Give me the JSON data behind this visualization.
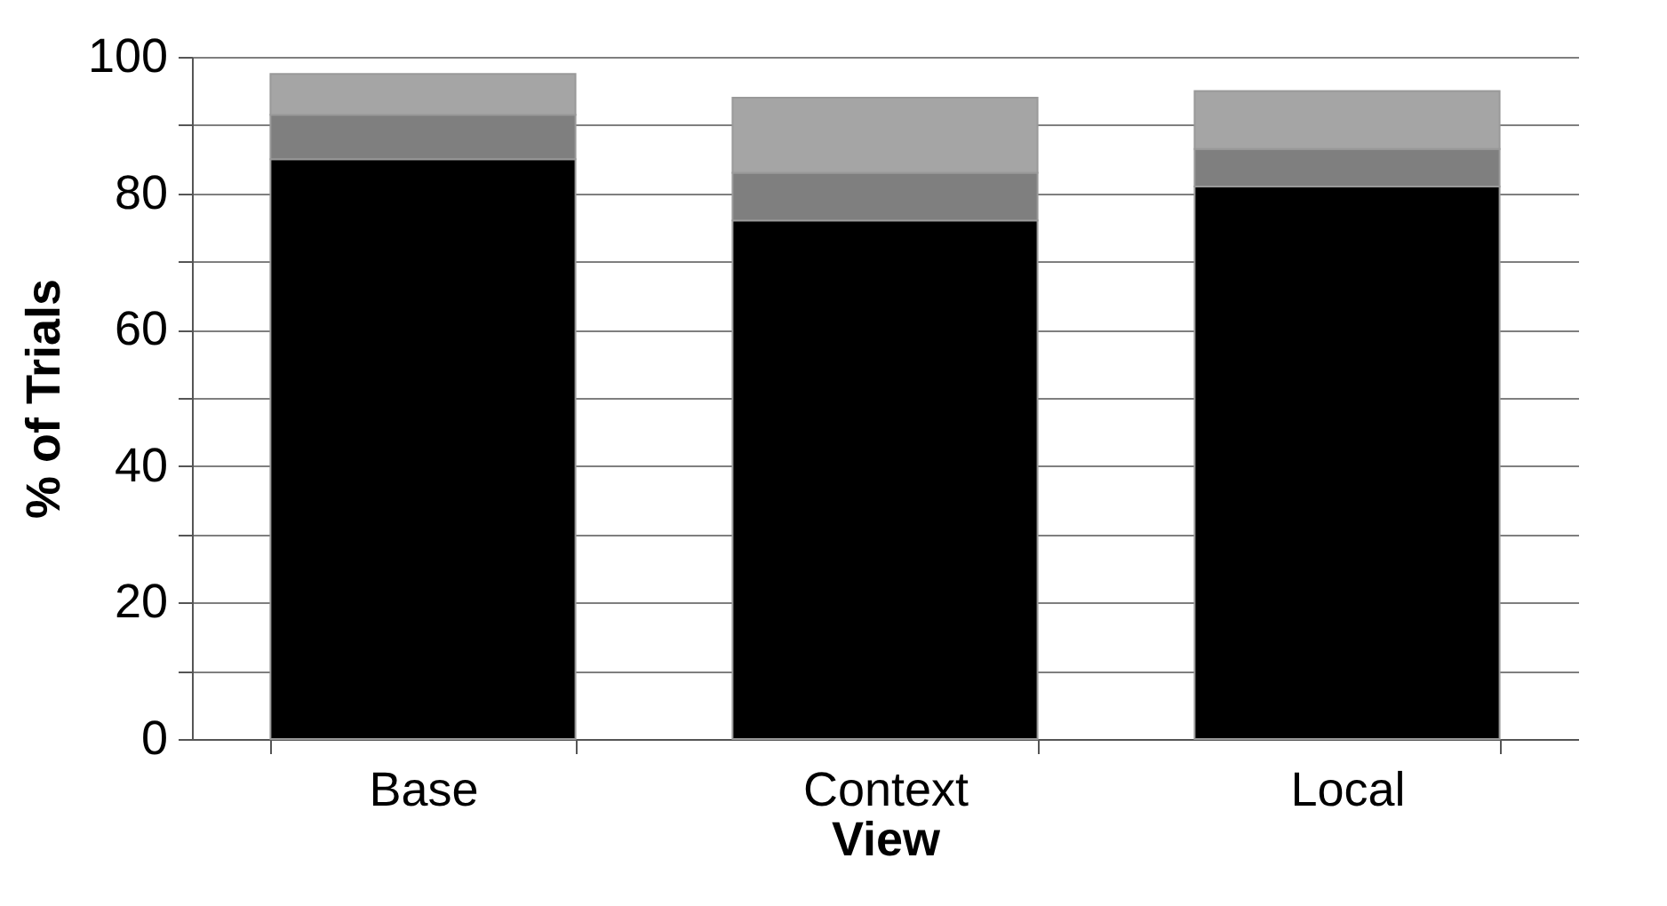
{
  "chart_data": {
    "type": "bar",
    "stacked": true,
    "xlabel": "View",
    "ylabel": "% of Trials",
    "categories": [
      "Base",
      "Context",
      "Local"
    ],
    "series": [
      {
        "color": "#000000",
        "values": [
          85,
          76,
          81
        ]
      },
      {
        "color": "#7f7f7f",
        "values": [
          6.5,
          7,
          5.5
        ]
      },
      {
        "color": "#a5a5a5",
        "values": [
          6,
          11,
          8.5
        ]
      }
    ],
    "ylim": [
      0,
      100
    ],
    "yticks": [
      0,
      {
        "value": 10,
        "label": null
      },
      20,
      {
        "value": 30,
        "label": null
      },
      40,
      {
        "value": 50,
        "label": null
      },
      60,
      {
        "value": 70,
        "label": null
      },
      80,
      {
        "value": 90,
        "label": null
      },
      100
    ],
    "grid": "y"
  }
}
